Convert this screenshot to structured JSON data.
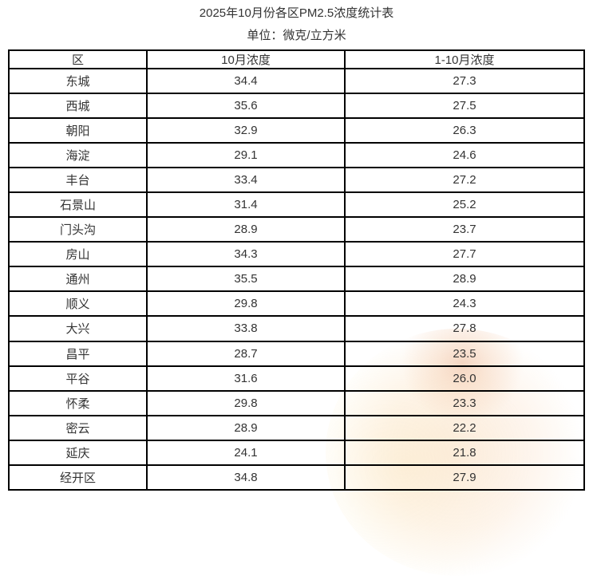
{
  "page": {
    "title": "2025年10月份各区PM2.5浓度统计表",
    "subtitle": "单位：微克/立方米"
  },
  "colors": {
    "border": "#000000",
    "text": "#333333",
    "background": "#ffffff",
    "watermark_tint": "#f6c6a0"
  },
  "table": {
    "columns": [
      "区",
      "10月浓度",
      "1-10月浓度"
    ],
    "rows": [
      [
        "东城",
        "34.4",
        "27.3"
      ],
      [
        "西城",
        "35.6",
        "27.5"
      ],
      [
        "朝阳",
        "32.9",
        "26.3"
      ],
      [
        "海淀",
        "29.1",
        "24.6"
      ],
      [
        "丰台",
        "33.4",
        "27.2"
      ],
      [
        "石景山",
        "31.4",
        "25.2"
      ],
      [
        "门头沟",
        "28.9",
        "23.7"
      ],
      [
        "房山",
        "34.3",
        "27.7"
      ],
      [
        "通州",
        "35.5",
        "28.9"
      ],
      [
        "顺义",
        "29.8",
        "24.3"
      ],
      [
        "大兴",
        "33.8",
        "27.8"
      ],
      [
        "昌平",
        "28.7",
        "23.5"
      ],
      [
        "平谷",
        "31.6",
        "26.0"
      ],
      [
        "怀柔",
        "29.8",
        "23.3"
      ],
      [
        "密云",
        "28.9",
        "22.2"
      ],
      [
        "延庆",
        "24.1",
        "21.8"
      ],
      [
        "经开区",
        "34.8",
        "27.9"
      ]
    ]
  }
}
